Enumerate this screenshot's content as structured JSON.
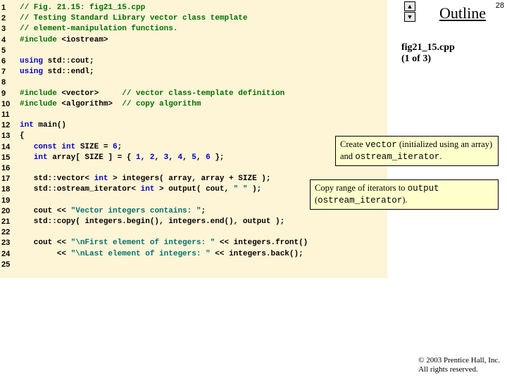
{
  "page_number": "28",
  "outline_label": "Outline",
  "nav_up": "▲",
  "nav_down": "▼",
  "file_ref_line1": "fig21_15.cpp",
  "file_ref_line2": "(1 of 3)",
  "line_numbers": [
    "1",
    "2",
    "3",
    "4",
    "5",
    "6",
    "7",
    "8",
    "9",
    "10",
    "11",
    "12",
    "13",
    "14",
    "15",
    "16",
    "17",
    "18",
    "19",
    "20",
    "21",
    "22",
    "23",
    "24",
    "25"
  ],
  "code": {
    "l1": "// Fig. 21.15: fig21_15.cpp",
    "l2": "// Testing Standard Library vector class template",
    "l3": "// element-manipulation functions.",
    "l4a": "#include",
    "l4b": " <iostream>",
    "l6a": "using",
    "l6b": " std::cout;",
    "l7a": "using",
    "l7b": " std::endl;",
    "l9a": "#include",
    "l9b": " <vector>     ",
    "l9c": "// vector class-template definition",
    "l10a": "#include",
    "l10b": " <algorithm>  ",
    "l10c": "// copy algorithm",
    "l12a": "int",
    "l12b": " main()",
    "l13": "{",
    "l14a": "   ",
    "l14b": "const int",
    "l14c": " SIZE = ",
    "l14d": "6",
    "l14e": ";",
    "l15a": "   ",
    "l15b": "int",
    "l15c": " array[ SIZE ] = { ",
    "l15d": "1",
    "l15e": ", ",
    "l15f": "2",
    "l15g": ", ",
    "l15h": "3",
    "l15i": ", ",
    "l15j": "4",
    "l15k": ", ",
    "l15l": "5",
    "l15m": ", ",
    "l15n": "6",
    "l15o": " };",
    "l17a": "   std::vector< ",
    "l17b": "int",
    "l17c": " > integers( array, array + SIZE );",
    "l18a": "   std::ostream_iterator< ",
    "l18b": "int",
    "l18c": " > output( cout, ",
    "l18d": "\" \"",
    "l18e": " );",
    "l20a": "   cout << ",
    "l20b": "\"Vector integers contains: \"",
    "l20c": ";",
    "l21": "   std::copy( integers.begin(), integers.end(), output );",
    "l23a": "   cout << ",
    "l23b": "\"\\nFirst element of integers: \"",
    "l23c": " << integers.front()",
    "l24a": "        << ",
    "l24b": "\"\\nLast element of integers: \"",
    "l24c": " << integers.back();"
  },
  "callout1_a": "Create ",
  "callout1_b": "vector",
  "callout1_c": " (initialized using an array) and ",
  "callout1_d": "ostream_iterator",
  "callout1_e": ".",
  "callout2_a": "Copy range of iterators to ",
  "callout2_b": "output",
  "callout2_c": " (",
  "callout2_d": "ostream_iterator",
  "callout2_e": ").",
  "copyright_line1": "© 2003 Prentice Hall, Inc.",
  "copyright_line2": "All rights reserved."
}
